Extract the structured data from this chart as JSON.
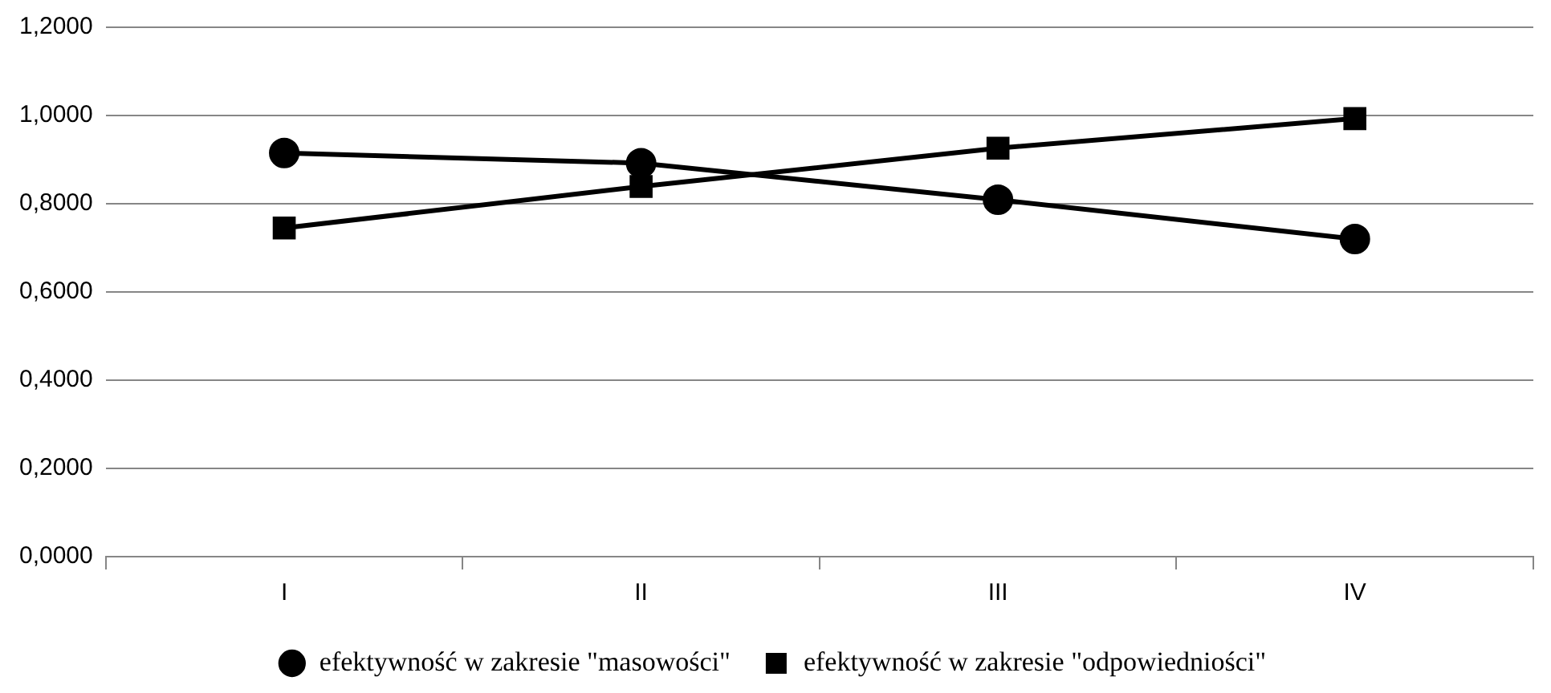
{
  "chart_data": {
    "type": "line",
    "categories": [
      "I",
      "II",
      "III",
      "IV"
    ],
    "series": [
      {
        "name": "efektywność w zakresie \"masowości\"",
        "color": "#000000",
        "marker": "circle",
        "values": [
          0.915,
          0.892,
          0.809,
          0.72
        ]
      },
      {
        "name": "efektywność w zakresie \"odpowiedniości\"",
        "color": "#000000",
        "marker": "square",
        "values": [
          0.745,
          0.839,
          0.926,
          0.993
        ]
      }
    ],
    "ylim": [
      0,
      1.2
    ],
    "yticks": [
      {
        "value": 0,
        "label": "0,0000"
      },
      {
        "value": 0.2,
        "label": "0,2000"
      },
      {
        "value": 0.4,
        "label": "0,4000"
      },
      {
        "value": 0.6,
        "label": "0,6000"
      },
      {
        "value": 0.8,
        "label": "0,8000"
      },
      {
        "value": 1,
        "label": "1,0000"
      },
      {
        "value": 1.2,
        "label": "1,2000"
      }
    ],
    "grid": "y",
    "legend": "bottom",
    "line_style": "solid"
  }
}
